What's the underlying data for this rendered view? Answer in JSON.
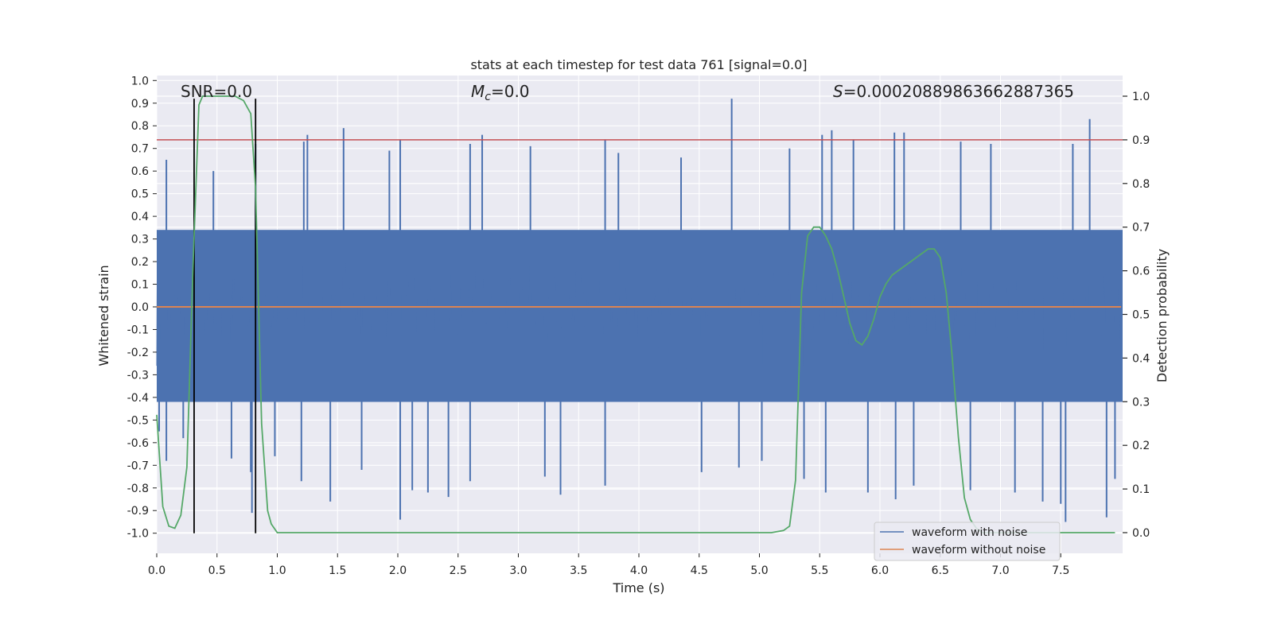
{
  "chart_data": {
    "type": "line",
    "title": "stats at each timestep for test data 761 [signal=0.0]",
    "xlabel": "Time (s)",
    "ylabel": "Whitened strain",
    "y2label": "Detection probability",
    "xlim": [
      0.0,
      8.0
    ],
    "ylim": [
      -1.09,
      1.02
    ],
    "y2lim": [
      -0.05,
      1.05
    ],
    "xticks": [
      "0.0",
      "0.5",
      "1.0",
      "1.5",
      "2.0",
      "2.5",
      "3.0",
      "3.5",
      "4.0",
      "4.5",
      "5.0",
      "5.5",
      "6.0",
      "6.5",
      "7.0",
      "7.5"
    ],
    "yticks": [
      "1.0",
      "0.9",
      "0.8",
      "0.7",
      "0.6",
      "0.5",
      "0.4",
      "0.3",
      "0.2",
      "0.1",
      "0.0",
      "-0.1",
      "-0.2",
      "-0.3",
      "-0.4",
      "-0.5",
      "-0.6",
      "-0.7",
      "-0.8",
      "-0.9",
      "-1.0"
    ],
    "y2ticks": [
      "1.0",
      "0.9",
      "0.8",
      "0.7",
      "0.6",
      "0.5",
      "0.4",
      "0.3",
      "0.2",
      "0.1",
      "0.0"
    ],
    "grid": true,
    "annotations": {
      "snr": "SNR=0.0",
      "mc_symbol": "M",
      "mc_sub": "c",
      "mc_value": "=0.0",
      "s_symbol": "S",
      "s_value": "=0.00020889863662887365"
    },
    "threshold_line_y2": 0.9,
    "vertical_lines_x": [
      0.31,
      0.82
    ],
    "vertical_lines_ylim": [
      -1.0,
      0.92
    ],
    "legend": {
      "position": "lower-right",
      "entries": [
        {
          "label": "waveform with noise",
          "color": "#4c72b0"
        },
        {
          "label": "waveform without noise",
          "color": "#dd8452"
        }
      ]
    },
    "series": [
      {
        "name": "waveform with noise",
        "axis": "left",
        "color": "#4c72b0",
        "envelope_note": "dense noise trace, core band approx ±0.4, peaks to +0.93 / -0.94",
        "spikes_up": [
          [
            0.08,
            0.65
          ],
          [
            0.47,
            0.6
          ],
          [
            0.82,
            0.72
          ],
          [
            1.22,
            0.73
          ],
          [
            1.25,
            0.76
          ],
          [
            1.55,
            0.79
          ],
          [
            1.93,
            0.69
          ],
          [
            2.02,
            0.74
          ],
          [
            2.6,
            0.72
          ],
          [
            2.7,
            0.76
          ],
          [
            3.1,
            0.71
          ],
          [
            3.72,
            0.74
          ],
          [
            3.83,
            0.68
          ],
          [
            4.35,
            0.66
          ],
          [
            4.77,
            0.92
          ],
          [
            5.25,
            0.7
          ],
          [
            5.52,
            0.76
          ],
          [
            5.6,
            0.78
          ],
          [
            5.78,
            0.74
          ],
          [
            6.12,
            0.77
          ],
          [
            6.2,
            0.77
          ],
          [
            6.67,
            0.73
          ],
          [
            6.92,
            0.72
          ],
          [
            7.6,
            0.72
          ],
          [
            7.74,
            0.83
          ]
        ],
        "spikes_down": [
          [
            0.02,
            -0.55
          ],
          [
            0.08,
            -0.68
          ],
          [
            0.22,
            -0.58
          ],
          [
            0.62,
            -0.67
          ],
          [
            0.78,
            -0.73
          ],
          [
            0.79,
            -0.91
          ],
          [
            0.98,
            -0.66
          ],
          [
            1.2,
            -0.77
          ],
          [
            1.44,
            -0.86
          ],
          [
            1.7,
            -0.72
          ],
          [
            2.02,
            -0.94
          ],
          [
            2.12,
            -0.81
          ],
          [
            2.25,
            -0.82
          ],
          [
            2.42,
            -0.84
          ],
          [
            2.6,
            -0.77
          ],
          [
            3.22,
            -0.75
          ],
          [
            3.35,
            -0.83
          ],
          [
            3.72,
            -0.79
          ],
          [
            4.52,
            -0.73
          ],
          [
            4.83,
            -0.71
          ],
          [
            5.02,
            -0.68
          ],
          [
            5.37,
            -0.76
          ],
          [
            5.55,
            -0.82
          ],
          [
            5.9,
            -0.82
          ],
          [
            6.13,
            -0.85
          ],
          [
            6.28,
            -0.79
          ],
          [
            6.75,
            -0.81
          ],
          [
            7.12,
            -0.82
          ],
          [
            7.35,
            -0.86
          ],
          [
            7.5,
            -0.87
          ],
          [
            7.54,
            -0.95
          ],
          [
            7.88,
            -0.93
          ],
          [
            7.95,
            -0.76
          ]
        ]
      },
      {
        "name": "waveform without noise",
        "axis": "left",
        "color": "#dd8452",
        "x": [
          0.0,
          8.0
        ],
        "y": [
          0.0,
          0.0
        ]
      },
      {
        "axis": "right",
        "color": "#55a868",
        "x": [
          0.0,
          0.05,
          0.1,
          0.15,
          0.2,
          0.25,
          0.3,
          0.35,
          0.38,
          0.45,
          0.55,
          0.65,
          0.72,
          0.78,
          0.82,
          0.87,
          0.92,
          0.95,
          1.0,
          1.2,
          2.0,
          3.0,
          4.0,
          4.8,
          5.1,
          5.2,
          5.25,
          5.3,
          5.35,
          5.4,
          5.45,
          5.5,
          5.55,
          5.6,
          5.65,
          5.7,
          5.75,
          5.8,
          5.85,
          5.9,
          5.95,
          6.0,
          6.05,
          6.1,
          6.15,
          6.2,
          6.25,
          6.3,
          6.35,
          6.4,
          6.45,
          6.5,
          6.55,
          6.6,
          6.65,
          6.7,
          6.75,
          6.8,
          6.85,
          6.9,
          6.95,
          7.0,
          7.2,
          7.5,
          7.95
        ],
        "y": [
          0.27,
          0.06,
          0.015,
          0.01,
          0.04,
          0.15,
          0.6,
          0.98,
          1.0,
          1.0,
          1.0,
          1.0,
          0.99,
          0.96,
          0.79,
          0.25,
          0.05,
          0.02,
          0.0,
          0.0,
          0.0,
          0.0,
          0.0,
          0.0,
          0.0,
          0.005,
          0.015,
          0.12,
          0.55,
          0.68,
          0.7,
          0.7,
          0.68,
          0.65,
          0.6,
          0.54,
          0.48,
          0.44,
          0.43,
          0.45,
          0.49,
          0.54,
          0.57,
          0.59,
          0.6,
          0.61,
          0.62,
          0.63,
          0.64,
          0.65,
          0.65,
          0.63,
          0.55,
          0.4,
          0.22,
          0.08,
          0.03,
          0.01,
          0.0,
          0.0,
          0.0,
          0.0,
          0.0,
          0.0,
          0.0
        ]
      }
    ]
  }
}
